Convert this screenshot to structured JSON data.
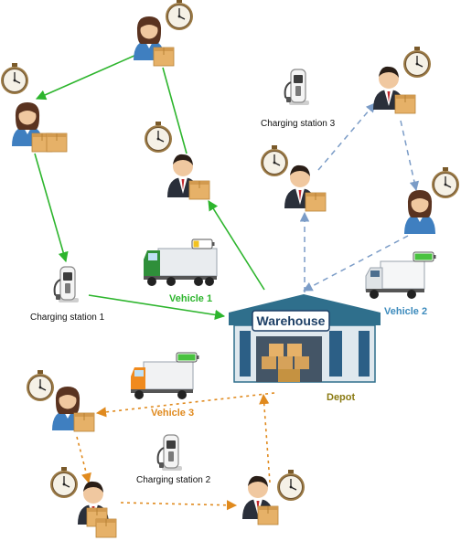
{
  "colors": {
    "vehicle_1": "#2db52d",
    "vehicle_2": "#7b9cc7",
    "vehicle_3": "#e08a1e",
    "depot_label": "#8a7a12",
    "warehouse_roof": "#2f6f8c",
    "warehouse_sign": "#1d3f66"
  },
  "labels": {
    "warehouse": "Warehouse",
    "depot": "Depot",
    "charging_station_1": "Charging station 1",
    "charging_station_2": "Charging station 2",
    "charging_station_3": "Charging station 3",
    "vehicle_1": "Vehicle 1",
    "vehicle_2": "Vehicle 2",
    "vehicle_3": "Vehicle 3"
  },
  "nodes": [
    {
      "id": "c1",
      "kind": "customer",
      "gender": "female"
    },
    {
      "id": "c2",
      "kind": "customer",
      "gender": "female"
    },
    {
      "id": "c3",
      "kind": "customer",
      "gender": "male"
    },
    {
      "id": "c4",
      "kind": "customer",
      "gender": "male"
    },
    {
      "id": "c5",
      "kind": "customer",
      "gender": "male"
    },
    {
      "id": "c6",
      "kind": "customer",
      "gender": "female"
    },
    {
      "id": "c7",
      "kind": "customer",
      "gender": "female"
    },
    {
      "id": "c8",
      "kind": "customer",
      "gender": "male"
    },
    {
      "id": "c9",
      "kind": "customer",
      "gender": "male"
    }
  ],
  "routes": [
    {
      "vehicle": "Vehicle 1",
      "color": "#2db52d",
      "style": "solid",
      "path": [
        "Warehouse",
        "c3",
        "c1",
        "c2",
        "Charging station 1",
        "Warehouse"
      ]
    },
    {
      "vehicle": "Vehicle 2",
      "color": "#7b9cc7",
      "style": "dashed",
      "path": [
        "Warehouse",
        "c4",
        "c5",
        "c6",
        "Warehouse"
      ]
    },
    {
      "vehicle": "Vehicle 3",
      "color": "#e08a1e",
      "style": "dotted",
      "path": [
        "Warehouse",
        "c7",
        "c8",
        "c9",
        "Warehouse"
      ]
    }
  ]
}
